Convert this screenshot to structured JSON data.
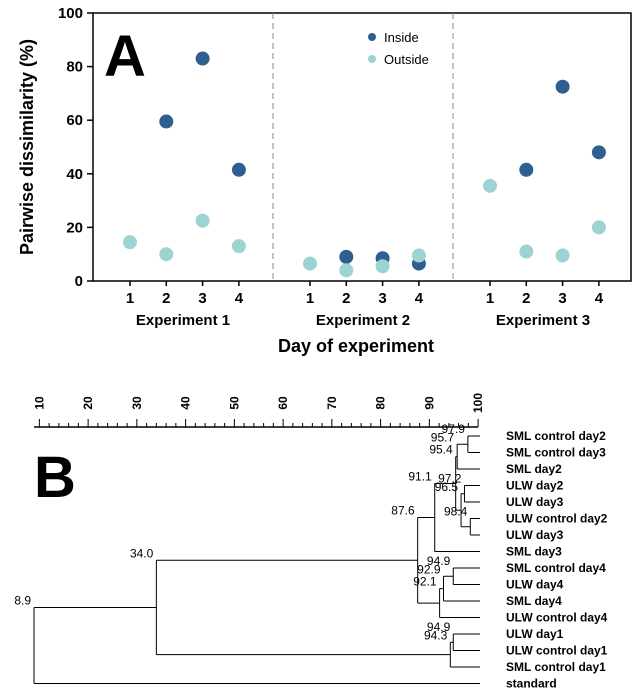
{
  "panel_a": {
    "letter": "A",
    "ylabel": "Pairwise dissimilarity (%)",
    "xlabel": "Day of experiment",
    "yticks": [
      0,
      20,
      40,
      60,
      80,
      100
    ],
    "legend": [
      {
        "name": "Inside",
        "color": "#2e5f91"
      },
      {
        "name": "Outside",
        "color": "#9ed3d3"
      }
    ],
    "experiments": [
      "Experiment 1",
      "Experiment 2",
      "Experiment 3"
    ],
    "days": [
      "1",
      "2",
      "3",
      "4"
    ]
  },
  "chart_data": [
    {
      "type": "scatter",
      "xlabel": "Day of experiment",
      "ylabel": "Pairwise dissimilarity (%)",
      "ylim": [
        0,
        100
      ],
      "grid": false,
      "legend_position": "top-center",
      "groups": [
        "Experiment 1",
        "Experiment 2",
        "Experiment 3"
      ],
      "series": [
        {
          "name": "Inside",
          "color": "#2e5f91",
          "points": [
            {
              "group": "Experiment 1",
              "day": 2,
              "y": 59.5
            },
            {
              "group": "Experiment 1",
              "day": 3,
              "y": 83
            },
            {
              "group": "Experiment 1",
              "day": 4,
              "y": 41.5
            },
            {
              "group": "Experiment 2",
              "day": 2,
              "y": 9
            },
            {
              "group": "Experiment 2",
              "day": 3,
              "y": 8.5
            },
            {
              "group": "Experiment 2",
              "day": 4,
              "y": 6.5
            },
            {
              "group": "Experiment 3",
              "day": 2,
              "y": 41.5
            },
            {
              "group": "Experiment 3",
              "day": 3,
              "y": 72.5
            },
            {
              "group": "Experiment 3",
              "day": 4,
              "y": 48
            }
          ]
        },
        {
          "name": "Outside",
          "color": "#9ed3d3",
          "points": [
            {
              "group": "Experiment 1",
              "day": 1,
              "y": 14.5
            },
            {
              "group": "Experiment 1",
              "day": 2,
              "y": 10
            },
            {
              "group": "Experiment 1",
              "day": 3,
              "y": 22.5
            },
            {
              "group": "Experiment 1",
              "day": 4,
              "y": 13
            },
            {
              "group": "Experiment 2",
              "day": 1,
              "y": 6.5
            },
            {
              "group": "Experiment 2",
              "day": 2,
              "y": 4
            },
            {
              "group": "Experiment 2",
              "day": 3,
              "y": 5.5
            },
            {
              "group": "Experiment 2",
              "day": 4,
              "y": 9.5
            },
            {
              "group": "Experiment 3",
              "day": 1,
              "y": 35.5
            },
            {
              "group": "Experiment 3",
              "day": 2,
              "y": 11
            },
            {
              "group": "Experiment 3",
              "day": 3,
              "y": 9.5
            },
            {
              "group": "Experiment 3",
              "day": 4,
              "y": 20
            }
          ]
        }
      ]
    },
    {
      "type": "dendrogram",
      "scale_ticks": [
        10,
        20,
        30,
        40,
        50,
        60,
        70,
        80,
        90,
        100
      ],
      "leaves": [
        "SML control day2",
        "SML control day3",
        "SML day2",
        "ULW day2",
        "ULW day3",
        "ULW control day2",
        "ULW day3",
        "SML day3",
        "SML control day4",
        "ULW day4",
        "SML day4",
        "ULW control day4",
        "ULW day1",
        "ULW control day1",
        "SML control day1",
        "standard"
      ],
      "nodes": [
        {
          "id": "n1",
          "similarity": 97.9,
          "children": [
            "L0",
            "L1"
          ]
        },
        {
          "id": "n2",
          "similarity": 95.7,
          "children": [
            "n1",
            "L2"
          ]
        },
        {
          "id": "n3",
          "similarity": 97.2,
          "children": [
            "L3",
            "L4"
          ]
        },
        {
          "id": "n4",
          "similarity": 98.4,
          "children": [
            "L5",
            "L6"
          ]
        },
        {
          "id": "n5",
          "similarity": 96.5,
          "children": [
            "n3",
            "n4"
          ]
        },
        {
          "id": "n6",
          "similarity": 95.4,
          "children": [
            "n2",
            "n5"
          ]
        },
        {
          "id": "n7",
          "similarity": 91.1,
          "children": [
            "n6",
            "L7"
          ]
        },
        {
          "id": "n8",
          "similarity": 94.9,
          "children": [
            "L8",
            "L9"
          ]
        },
        {
          "id": "n9",
          "similarity": 92.9,
          "children": [
            "n8",
            "L10"
          ]
        },
        {
          "id": "n10",
          "similarity": 92.1,
          "children": [
            "n9",
            "L11"
          ]
        },
        {
          "id": "n11",
          "similarity": 87.6,
          "children": [
            "n7",
            "n10"
          ]
        },
        {
          "id": "n12",
          "similarity": 94.9,
          "children": [
            "L12",
            "L13"
          ]
        },
        {
          "id": "n13",
          "similarity": 94.3,
          "children": [
            "n12",
            "L14"
          ]
        },
        {
          "id": "n14",
          "similarity": 34.0,
          "children": [
            "n11",
            "n13"
          ]
        },
        {
          "id": "n15",
          "similarity": 8.9,
          "children": [
            "n14",
            "L15"
          ]
        }
      ]
    }
  ],
  "panel_b": {
    "letter": "B"
  }
}
